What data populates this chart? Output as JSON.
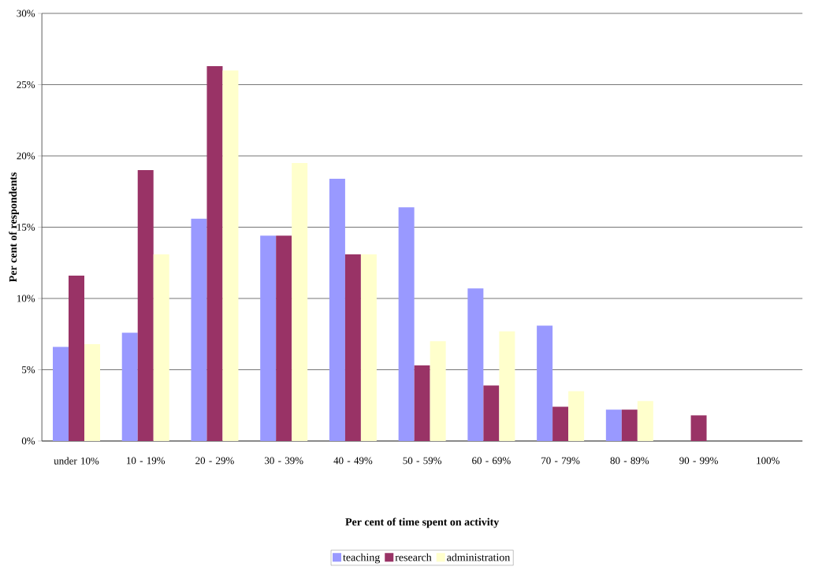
{
  "chart_data": {
    "type": "bar",
    "xlabel": "Per cent of time spent on activity",
    "ylabel": "Per cent of respondents",
    "categories": [
      "under 10%",
      "10 - 19%",
      "20 - 29%",
      "30 - 39%",
      "40 - 49%",
      "50 - 59%",
      "60 - 69%",
      "70 - 79%",
      "80 - 89%",
      "90 - 99%",
      "100%"
    ],
    "series": [
      {
        "name": "teaching",
        "color": "#9999ff",
        "values": [
          6.6,
          7.6,
          15.6,
          14.4,
          18.4,
          16.4,
          10.7,
          8.1,
          2.2,
          0,
          0
        ]
      },
      {
        "name": "research",
        "color": "#993366",
        "values": [
          11.6,
          19.0,
          26.3,
          14.4,
          13.1,
          5.3,
          3.9,
          2.4,
          2.2,
          1.8,
          0
        ]
      },
      {
        "name": "administration",
        "color": "#ffffcc",
        "values": [
          6.8,
          13.1,
          26.0,
          19.5,
          13.1,
          7.0,
          7.7,
          3.5,
          2.8,
          0,
          0
        ]
      }
    ],
    "ylim": [
      0,
      30
    ],
    "yticks": [
      {
        "value": 0,
        "label": "0%"
      },
      {
        "value": 5,
        "label": "5%"
      },
      {
        "value": 10,
        "label": "10%"
      },
      {
        "value": 15,
        "label": "15%"
      },
      {
        "value": 20,
        "label": "20%"
      },
      {
        "value": 25,
        "label": "25%"
      },
      {
        "value": 30,
        "label": "30%"
      }
    ],
    "grid": "y",
    "legend": "bottom"
  }
}
